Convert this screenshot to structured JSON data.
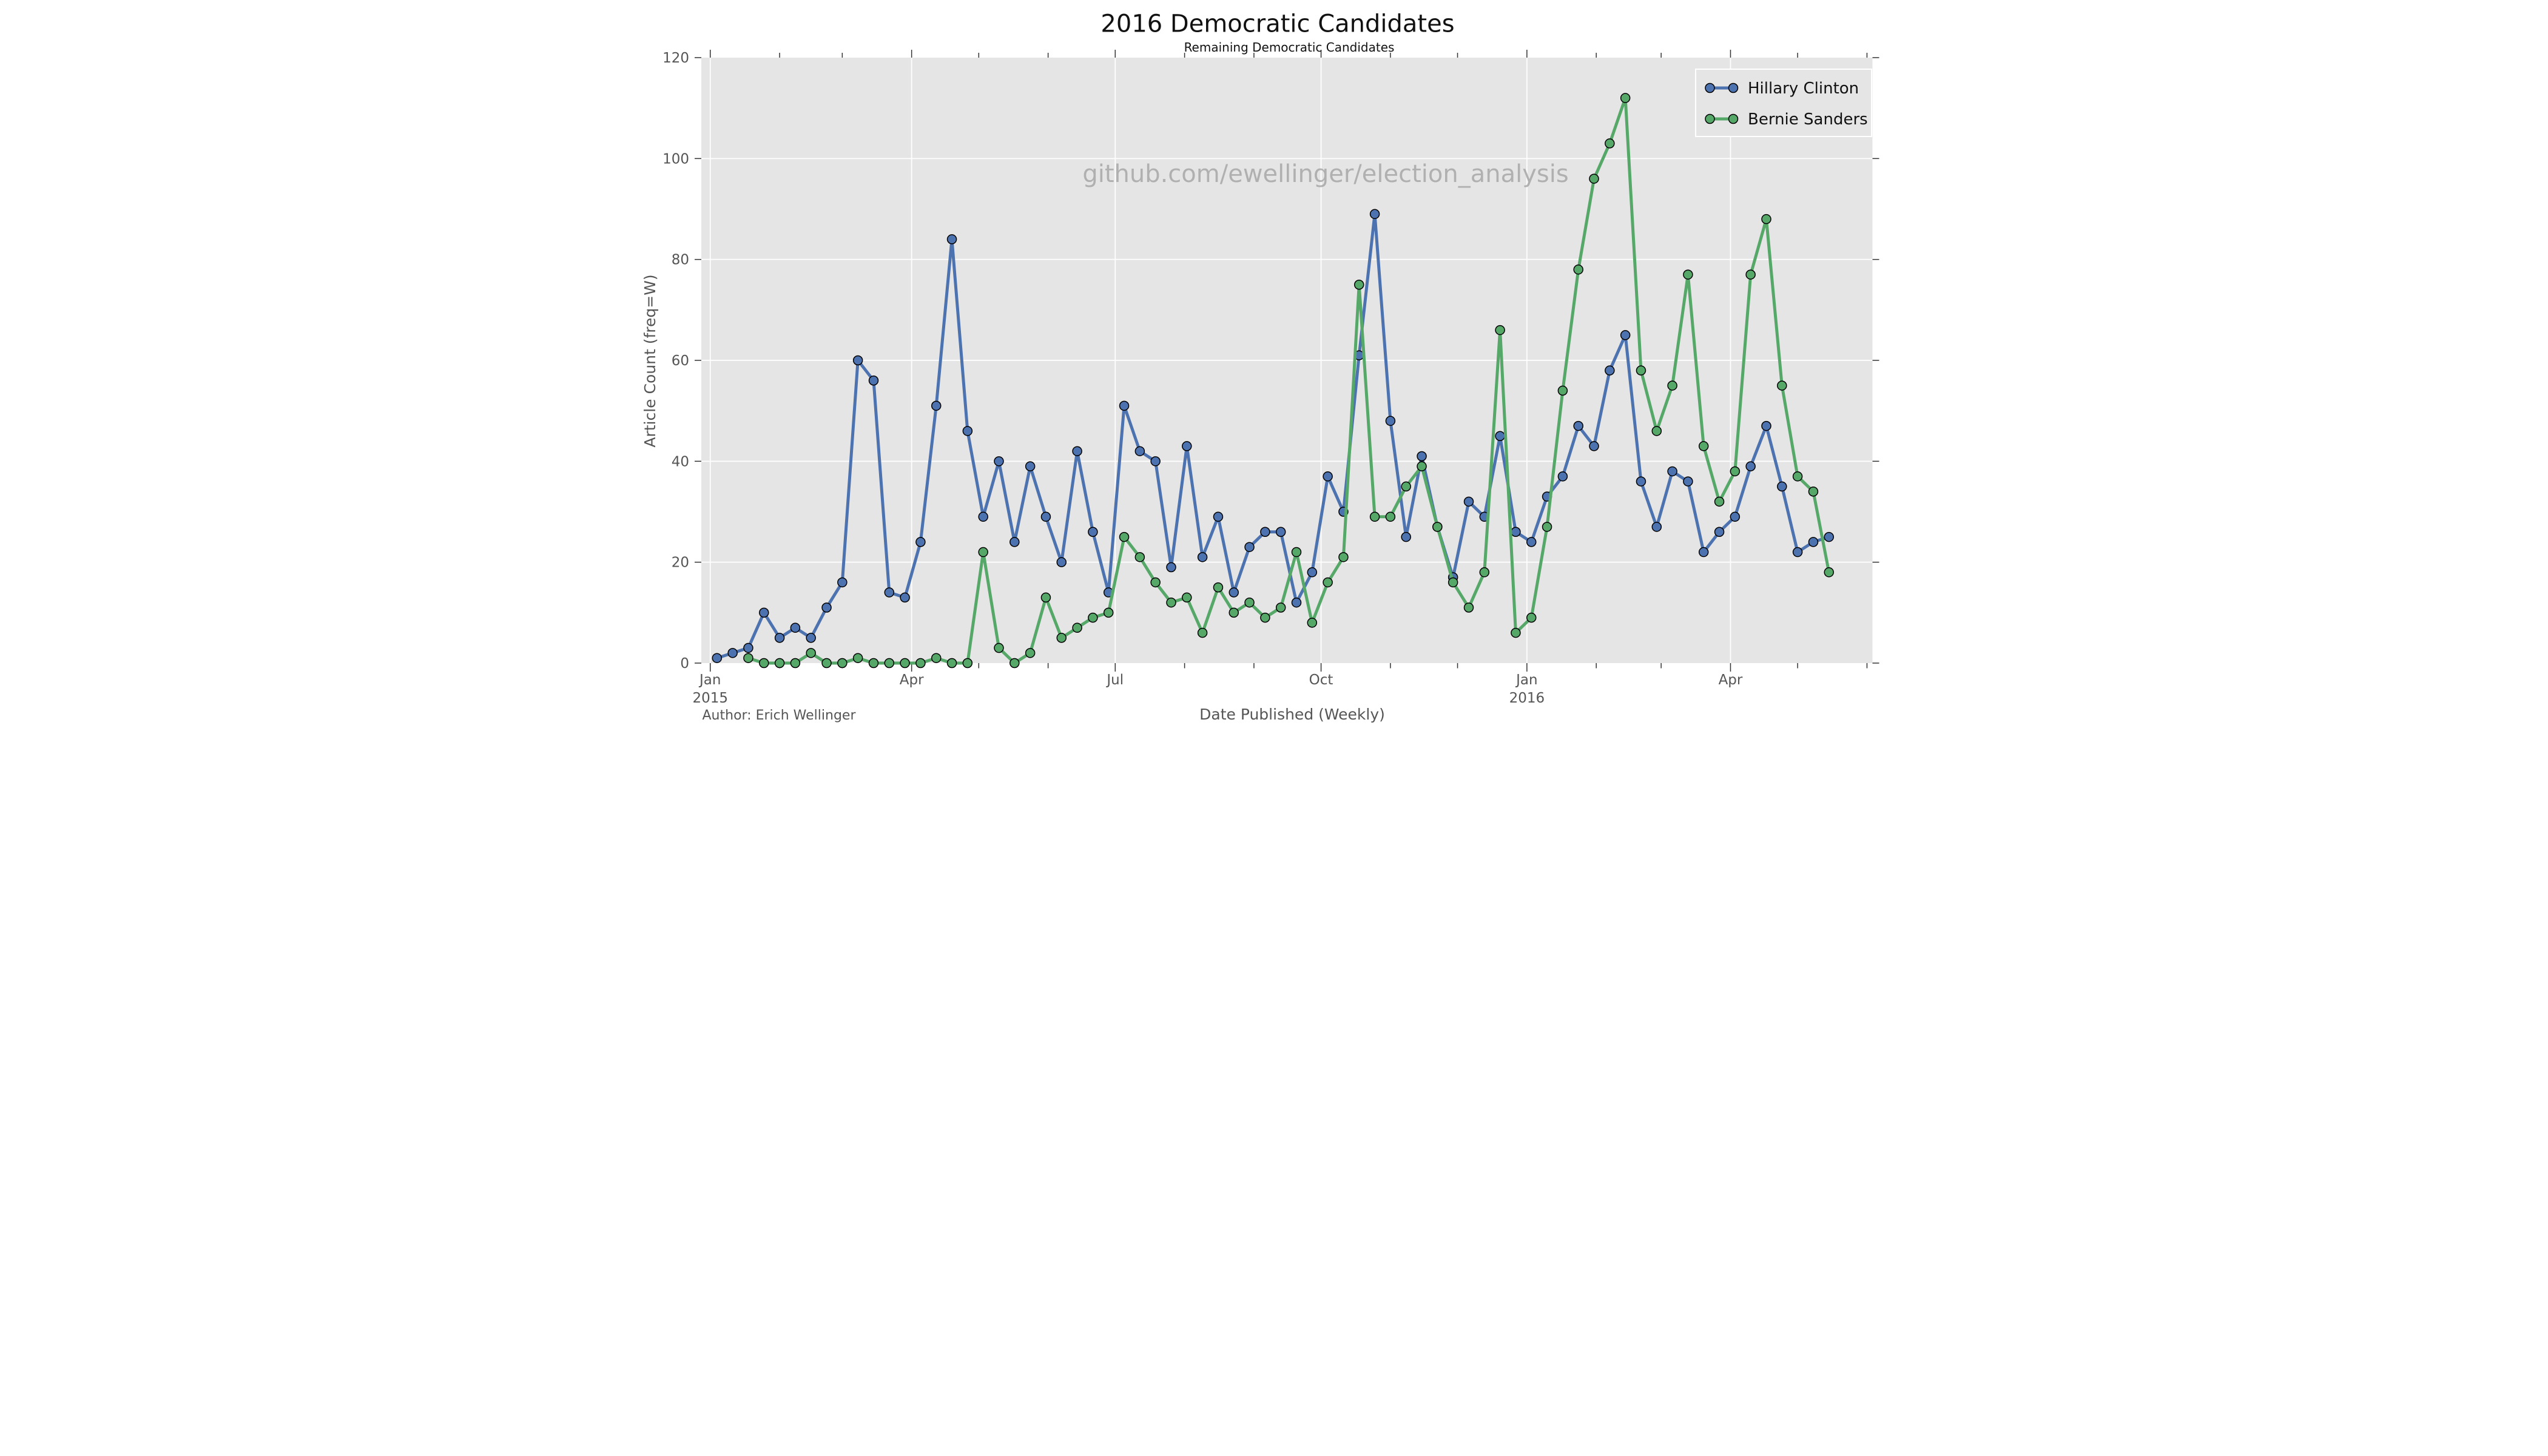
{
  "header": {
    "title": "2016 Democratic Candidates",
    "subtitle": "Remaining Democratic Candidates"
  },
  "watermark": "github.com/ewellinger/election_analysis",
  "author_note": "Author: Erich Wellinger",
  "axes": {
    "x_label": "Date Published (Weekly)",
    "y_label": "Article Count (freq=W)",
    "y_ticks": [
      0,
      20,
      40,
      60,
      80,
      100,
      120
    ],
    "x_major_ticks": [
      {
        "date": "2015-01-01",
        "label": "Jan",
        "year_label": "2015"
      },
      {
        "date": "2015-04-01",
        "label": "Apr"
      },
      {
        "date": "2015-07-01",
        "label": "Jul"
      },
      {
        "date": "2015-10-01",
        "label": "Oct"
      },
      {
        "date": "2016-01-01",
        "label": "Jan",
        "year_label": "2016"
      },
      {
        "date": "2016-04-01",
        "label": "Apr"
      }
    ],
    "x_minor_ticks": [
      "2015-02-01",
      "2015-03-01",
      "2015-05-01",
      "2015-06-01",
      "2015-08-01",
      "2015-09-01",
      "2015-11-01",
      "2015-12-01",
      "2016-02-01",
      "2016-03-01",
      "2016-05-01",
      "2016-06-01"
    ]
  },
  "legend": {
    "entries": [
      {
        "label": "Hillary Clinton",
        "color": "#4C72B0"
      },
      {
        "label": "Bernie Sanders",
        "color": "#55A868"
      }
    ]
  },
  "colors": {
    "figure_background": "#ffffff",
    "plot_background": "#e5e5e5",
    "grid": "#ffffff",
    "tick": "#333333",
    "muted_text": "#555555",
    "watermark": "#ababab",
    "hillary": "#4C72B0",
    "bernie": "#55A868",
    "marker_edge": "#000000"
  },
  "chart_data": {
    "type": "line",
    "title": "2016 Democratic Candidates",
    "subtitle": "Remaining Democratic Candidates",
    "xlabel": "Date Published (Weekly)",
    "ylabel": "Article Count (freq=W)",
    "ylim": [
      0,
      120
    ],
    "grid": true,
    "legend_position": "upper right",
    "x": [
      "2015-01-04",
      "2015-01-11",
      "2015-01-18",
      "2015-01-25",
      "2015-02-01",
      "2015-02-08",
      "2015-02-15",
      "2015-02-22",
      "2015-03-01",
      "2015-03-08",
      "2015-03-15",
      "2015-03-22",
      "2015-03-29",
      "2015-04-05",
      "2015-04-12",
      "2015-04-19",
      "2015-04-26",
      "2015-05-03",
      "2015-05-10",
      "2015-05-17",
      "2015-05-24",
      "2015-05-31",
      "2015-06-07",
      "2015-06-14",
      "2015-06-21",
      "2015-06-28",
      "2015-07-05",
      "2015-07-12",
      "2015-07-19",
      "2015-07-26",
      "2015-08-02",
      "2015-08-09",
      "2015-08-16",
      "2015-08-23",
      "2015-08-30",
      "2015-09-06",
      "2015-09-13",
      "2015-09-20",
      "2015-09-27",
      "2015-10-04",
      "2015-10-11",
      "2015-10-18",
      "2015-10-25",
      "2015-11-01",
      "2015-11-08",
      "2015-11-15",
      "2015-11-22",
      "2015-11-29",
      "2015-12-06",
      "2015-12-13",
      "2015-12-20",
      "2015-12-27",
      "2016-01-03",
      "2016-01-10",
      "2016-01-17",
      "2016-01-24",
      "2016-01-31",
      "2016-02-07",
      "2016-02-14",
      "2016-02-21",
      "2016-02-28",
      "2016-03-06",
      "2016-03-13",
      "2016-03-20",
      "2016-03-27",
      "2016-04-03",
      "2016-04-10",
      "2016-04-17",
      "2016-04-24",
      "2016-05-01",
      "2016-05-08",
      "2016-05-15"
    ],
    "series": [
      {
        "name": "Hillary Clinton",
        "color": "#4C72B0",
        "values": [
          1,
          2,
          3,
          10,
          5,
          7,
          5,
          11,
          16,
          60,
          56,
          14,
          13,
          24,
          51,
          84,
          46,
          29,
          40,
          24,
          39,
          29,
          20,
          42,
          26,
          14,
          51,
          42,
          40,
          19,
          43,
          21,
          29,
          14,
          23,
          26,
          26,
          12,
          18,
          37,
          30,
          61,
          89,
          48,
          25,
          41,
          27,
          17,
          32,
          29,
          45,
          26,
          24,
          33,
          37,
          47,
          43,
          58,
          65,
          36,
          27,
          38,
          36,
          22,
          26,
          29,
          39,
          47,
          35,
          22,
          24,
          25
        ]
      },
      {
        "name": "Bernie Sanders",
        "color": "#55A868",
        "values": [
          null,
          null,
          1,
          0,
          0,
          0,
          2,
          0,
          0,
          1,
          0,
          0,
          0,
          0,
          1,
          0,
          0,
          22,
          3,
          0,
          2,
          13,
          5,
          7,
          9,
          10,
          25,
          21,
          16,
          12,
          13,
          6,
          15,
          10,
          12,
          9,
          11,
          22,
          8,
          16,
          21,
          75,
          29,
          29,
          35,
          39,
          27,
          16,
          11,
          18,
          66,
          6,
          9,
          27,
          54,
          78,
          96,
          103,
          112,
          58,
          46,
          55,
          77,
          43,
          32,
          38,
          77,
          88,
          55,
          37,
          34,
          18
        ]
      }
    ]
  }
}
